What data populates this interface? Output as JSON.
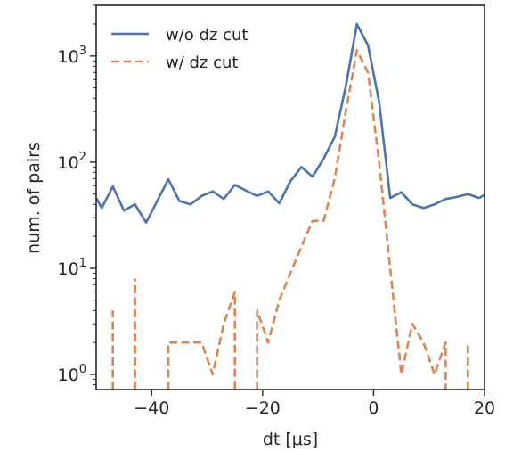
{
  "chart_data": {
    "type": "line",
    "xlabel": "dt [μs]",
    "ylabel": "num. of pairs",
    "xlim": [
      -50,
      20
    ],
    "ylim": [
      0.72,
      3000
    ],
    "y_scale": "log",
    "x_ticks": [
      -40,
      -20,
      0,
      20
    ],
    "y_ticks": [
      {
        "value": 1,
        "base": "10",
        "exp": "0"
      },
      {
        "value": 10,
        "base": "10",
        "exp": "1"
      },
      {
        "value": 100,
        "base": "10",
        "exp": "2"
      },
      {
        "value": 1000,
        "base": "10",
        "exp": "3"
      }
    ],
    "legend_position": "upper-left",
    "grid": false,
    "series": [
      {
        "name": "w/o dz cut",
        "color": "#4c72b0",
        "style": "solid",
        "points": [
          [
            -50,
            46
          ],
          [
            -49,
            37
          ],
          [
            -47,
            59
          ],
          [
            -45,
            35
          ],
          [
            -43,
            40
          ],
          [
            -41,
            27
          ],
          [
            -39,
            43
          ],
          [
            -37,
            69
          ],
          [
            -35,
            43
          ],
          [
            -33,
            40
          ],
          [
            -31,
            48
          ],
          [
            -29,
            53
          ],
          [
            -27,
            45
          ],
          [
            -25,
            61
          ],
          [
            -23,
            54
          ],
          [
            -21,
            48
          ],
          [
            -19,
            53
          ],
          [
            -17,
            41
          ],
          [
            -15,
            66
          ],
          [
            -13,
            90
          ],
          [
            -11,
            73
          ],
          [
            -9,
            108
          ],
          [
            -7,
            173
          ],
          [
            -5,
            520
          ],
          [
            -3,
            2000
          ],
          [
            -1,
            1260
          ],
          [
            1,
            370
          ],
          [
            3,
            46
          ],
          [
            5,
            52
          ],
          [
            7,
            40
          ],
          [
            9,
            37
          ],
          [
            11,
            40
          ],
          [
            13,
            45
          ],
          [
            15,
            47
          ],
          [
            17,
            50
          ],
          [
            19,
            46
          ],
          [
            20,
            49
          ]
        ]
      },
      {
        "name": "w/ dz cut",
        "color": "#dd8452",
        "style": "dashed",
        "segments": [
          [
            [
              -47,
              0.72
            ],
            [
              -47,
              4
            ]
          ],
          [
            [
              -43,
              0.72
            ],
            [
              -43,
              8
            ]
          ],
          [
            [
              -37,
              0.72
            ],
            [
              -37,
              2
            ],
            [
              -35,
              2
            ],
            [
              -33,
              2
            ],
            [
              -31,
              2
            ],
            [
              -29,
              1
            ],
            [
              -27,
              3
            ],
            [
              -25,
              6
            ],
            [
              -25,
              0.72
            ]
          ],
          [
            [
              -21,
              0.72
            ],
            [
              -21,
              4
            ],
            [
              -19,
              2
            ],
            [
              -17,
              5
            ],
            [
              -15,
              9
            ],
            [
              -13,
              16
            ],
            [
              -11,
              28
            ],
            [
              -9,
              28
            ],
            [
              -7,
              70
            ],
            [
              -5,
              300
            ],
            [
              -3,
              1130
            ],
            [
              -1,
              700
            ],
            [
              1,
              100
            ],
            [
              3,
              10
            ],
            [
              5,
              1
            ],
            [
              7,
              3
            ],
            [
              9,
              2
            ],
            [
              11,
              1
            ],
            [
              13,
              2
            ],
            [
              13,
              0.72
            ]
          ],
          [
            [
              17,
              0.72
            ],
            [
              17,
              2
            ]
          ]
        ]
      }
    ]
  }
}
